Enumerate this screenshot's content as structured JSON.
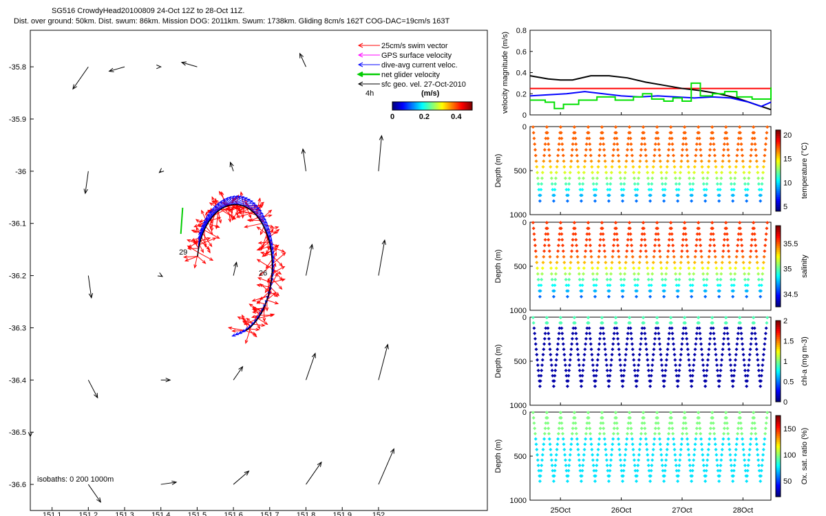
{
  "header": {
    "line1": "SG516 CrowdyHead20100809 24-Oct 12Z to 28-Oct 11Z.",
    "line2": "Dist. over ground: 50km. Dist. swum: 86km. Mission DOG: 2011km. Swum: 1738km. Gliding 8cm/s 162T COG-DAC=19cm/s 163T"
  },
  "map": {
    "legend": [
      {
        "label": "25cm/s swim vector",
        "color": "#ff0000"
      },
      {
        "label": "GPS surface velocity",
        "color": "#ff00ff"
      },
      {
        "label": "dive-avg current veloc.",
        "color": "#0000ff"
      },
      {
        "label": "net glider velocity",
        "color": "#00cc00"
      },
      {
        "label": "sfc geo. vel. 27-Oct-2010",
        "color": "#000000"
      }
    ],
    "legend_note": "4h",
    "colorbar": {
      "title": "(m/s)",
      "ticks": [
        "0",
        "0.2",
        "0.4"
      ],
      "range": [
        0,
        0.5
      ]
    },
    "xlim": [
      151.04,
      152.3
    ],
    "ylim": [
      -36.65,
      -35.73
    ],
    "xticks": [
      "151.1",
      "151.2",
      "151.3",
      "151.4",
      "151.5",
      "151.6",
      "151.7",
      "151.8",
      "151.9",
      "152"
    ],
    "yticks": [
      "-35.8",
      "-35.9",
      "-36",
      "-36.1",
      "-36.2",
      "-36.3",
      "-36.4",
      "-36.5",
      "-36.6"
    ],
    "day_labels": [
      {
        "text": "29",
        "lon": 151.45,
        "lat": -36.16
      },
      {
        "text": "26",
        "lon": 151.67,
        "lat": -36.2
      }
    ],
    "isobath_label": "isobaths: 0   200   1000m"
  },
  "time_axis": {
    "ticks": [
      "25Oct",
      "26Oct",
      "27Oct",
      "28Oct"
    ],
    "tick_days": [
      25,
      26,
      27,
      28
    ],
    "range": [
      24.5,
      28.46
    ]
  },
  "panels": [
    {
      "ylabel": "Depth (m)",
      "cblabel": "temperature (°C)",
      "cbticks": [
        "5",
        "10",
        "15",
        "20"
      ],
      "yticks": [
        "0",
        "500",
        "1000"
      ],
      "ylim": [
        0,
        1000
      ]
    },
    {
      "ylabel": "Depth (m)",
      "cblabel": "salinity",
      "cbticks": [
        "34.5",
        "35",
        "35.5"
      ],
      "yticks": [
        "0",
        "500",
        "1000"
      ],
      "ylim": [
        0,
        1000
      ]
    },
    {
      "ylabel": "Depth (m)",
      "cblabel": "chl-a (mg m-3)",
      "cbticks": [
        "0",
        "0.5",
        "1",
        "1.5",
        "2"
      ],
      "yticks": [
        "0",
        "500",
        "1000"
      ],
      "ylim": [
        0,
        1000
      ]
    },
    {
      "ylabel": "Depth (m)",
      "cblabel": "Ox. sat. ratio (%)",
      "cbticks": [
        "50",
        "100",
        "150"
      ],
      "yticks": [
        "0",
        "500",
        "1000"
      ],
      "ylim": [
        0,
        1000
      ]
    }
  ],
  "chart_data": [
    {
      "type": "line",
      "ylabel": "velocity magnitude (m/s)",
      "ylim": [
        0,
        0.8
      ],
      "yticks": [
        "0",
        "0.2",
        "0.4",
        "0.6",
        "0.8"
      ],
      "x_unit": "day of Oct 2010",
      "series": [
        {
          "color": "#ff0000",
          "x": [
            24.5,
            28.46
          ],
          "y": [
            0.25,
            0.25
          ]
        },
        {
          "color": "#000000",
          "x": [
            24.5,
            24.8,
            25.0,
            25.2,
            25.5,
            25.8,
            26.1,
            26.4,
            26.7,
            27.0,
            27.3,
            27.6,
            27.9,
            28.2,
            28.46
          ],
          "y": [
            0.37,
            0.34,
            0.33,
            0.33,
            0.37,
            0.37,
            0.35,
            0.31,
            0.28,
            0.25,
            0.23,
            0.2,
            0.16,
            0.1,
            0.05
          ]
        },
        {
          "color": "#0000ff",
          "x": [
            24.5,
            24.8,
            25.1,
            25.4,
            25.7,
            26.0,
            26.3,
            26.6,
            26.9,
            27.2,
            27.5,
            27.8,
            28.1,
            28.3,
            28.46
          ],
          "y": [
            0.18,
            0.19,
            0.2,
            0.22,
            0.2,
            0.18,
            0.17,
            0.18,
            0.17,
            0.16,
            0.17,
            0.16,
            0.12,
            0.08,
            0.12
          ]
        },
        {
          "color": "#00e000",
          "step": true,
          "x": [
            24.5,
            24.75,
            24.9,
            25.05,
            25.3,
            25.6,
            25.9,
            26.2,
            26.35,
            26.5,
            26.7,
            26.85,
            27.0,
            27.15,
            27.3,
            27.5,
            27.7,
            27.9,
            28.15,
            28.35,
            28.46
          ],
          "y": [
            0.14,
            0.12,
            0.06,
            0.1,
            0.14,
            0.17,
            0.14,
            0.17,
            0.2,
            0.15,
            0.13,
            0.16,
            0.13,
            0.3,
            0.18,
            0.2,
            0.22,
            0.17,
            0.15,
            0.15,
            0.26
          ]
        }
      ]
    }
  ]
}
